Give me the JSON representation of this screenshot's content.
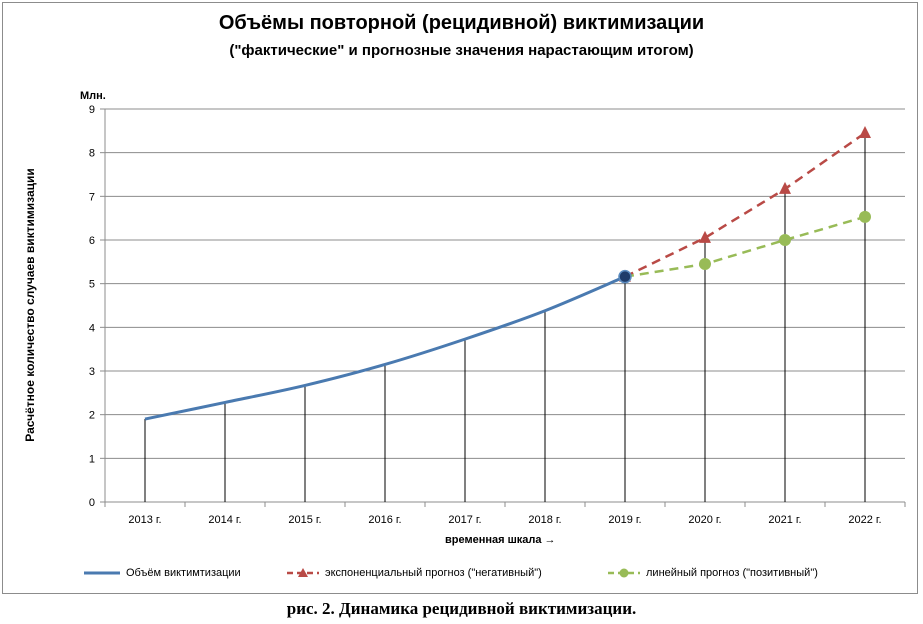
{
  "chart_data": {
    "type": "line",
    "title": "Объёмы повторной (рецидивной) виктимизации",
    "subtitle": "(\"фактические\" и прогнозные значения нарастающим итогом)",
    "unit_label": "Млн.",
    "ylabel": "Расчётное количество случаев виктимизации",
    "xlabel": "временная шкала  →",
    "categories": [
      "2013 г.",
      "2014 г.",
      "2015 г.",
      "2016 г.",
      "2017 г.",
      "2018 г.",
      "2019 г.",
      "2020 г.",
      "2021 г.",
      "2022 г."
    ],
    "ylim": [
      0,
      9
    ],
    "yticks": [
      "0",
      "1",
      "2",
      "3",
      "4",
      "5",
      "6",
      "7",
      "8",
      "9"
    ],
    "grid": true,
    "legend_position": "bottom",
    "series": [
      {
        "name": "Объём виктимтизации",
        "color": "#4a7ab0",
        "style": "solid",
        "values": [
          1.9,
          2.28,
          2.67,
          3.15,
          3.73,
          4.38,
          5.16,
          null,
          null,
          null
        ]
      },
      {
        "name": "экспоненциальный прогноз (\"негативный\")",
        "color": "#b94a46",
        "style": "dashed",
        "marker": "triangle",
        "values": [
          null,
          null,
          null,
          null,
          null,
          null,
          5.16,
          6.05,
          7.17,
          8.45
        ]
      },
      {
        "name": "линейный прогноз (\"позитивный\")",
        "color": "#98bb57",
        "style": "dashed",
        "marker": "circle",
        "values": [
          null,
          null,
          null,
          null,
          null,
          null,
          5.16,
          5.45,
          6.0,
          6.53
        ]
      }
    ]
  },
  "caption": "рис. 2. Динамика рецидивной виктимизации."
}
